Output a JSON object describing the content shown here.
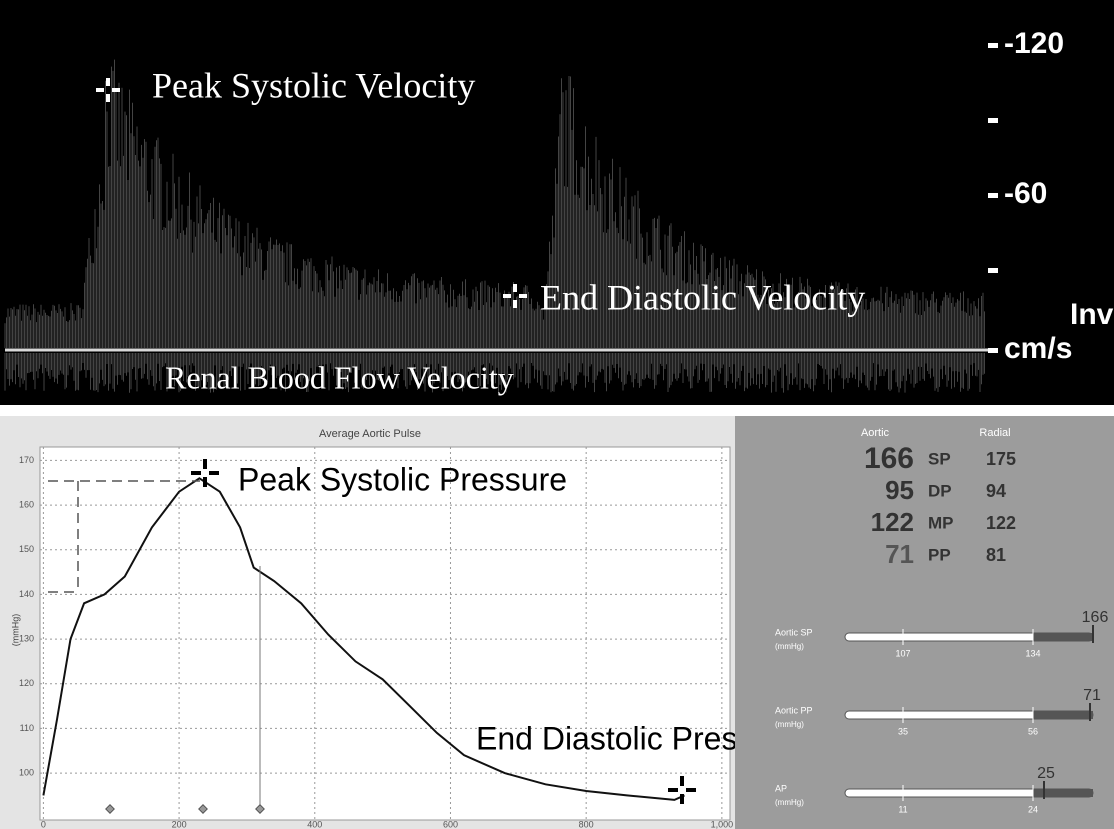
{
  "doppler": {
    "annotations": [
      "Peak Systolic Velocity",
      "End Diastolic Velocity",
      "Renal Blood Flow Velocity"
    ],
    "scale": [
      "-120",
      "-60",
      "cm/s"
    ],
    "side_label": "Inv"
  },
  "chart_data": {
    "type": "line",
    "title": "Average Aortic Pulse",
    "y_label": "(mmHg)",
    "x": [
      0,
      20,
      40,
      60,
      90,
      120,
      160,
      200,
      230,
      260,
      290,
      310,
      340,
      380,
      420,
      460,
      500,
      540,
      580,
      620,
      680,
      740,
      800,
      860,
      930,
      945
    ],
    "values": [
      95,
      112,
      130,
      138,
      140,
      144,
      155,
      163,
      166,
      163,
      155,
      146,
      143,
      138,
      131,
      125,
      121,
      115,
      109,
      104,
      100,
      97.5,
      96,
      95,
      94,
      95
    ],
    "color": "#111111",
    "xlim": [
      -5,
      1012
    ],
    "ylim": [
      89.5,
      173
    ],
    "xticks": [
      0,
      200,
      400,
      600,
      800,
      {
        "value": 1000,
        "label": "1,000"
      }
    ],
    "yticks": [
      100,
      110,
      120,
      130,
      140,
      150,
      160,
      170
    ],
    "grid": true,
    "annotations": [
      "Peak Systolic Pressure",
      "End Diastolic Pressure"
    ]
  },
  "panel": {
    "headers": [
      "Aortic",
      "Radial"
    ],
    "rows": [
      [
        "166",
        "SP",
        "175"
      ],
      [
        "95",
        "DP",
        "94"
      ],
      [
        "122",
        "MP",
        "122"
      ],
      [
        "71",
        "PP",
        "81"
      ]
    ],
    "gauges": [
      {
        "label": "Aortic SP",
        "unit": "(mmHg)",
        "ticks": [
          "107",
          "134"
        ],
        "value": "166"
      },
      {
        "label": "Aortic PP",
        "unit": "(mmHg)",
        "ticks": [
          "35",
          "56"
        ],
        "value": "71"
      },
      {
        "label": "AP",
        "unit": "(mmHg)",
        "ticks": [
          "11",
          "24"
        ],
        "value": "25"
      }
    ]
  }
}
